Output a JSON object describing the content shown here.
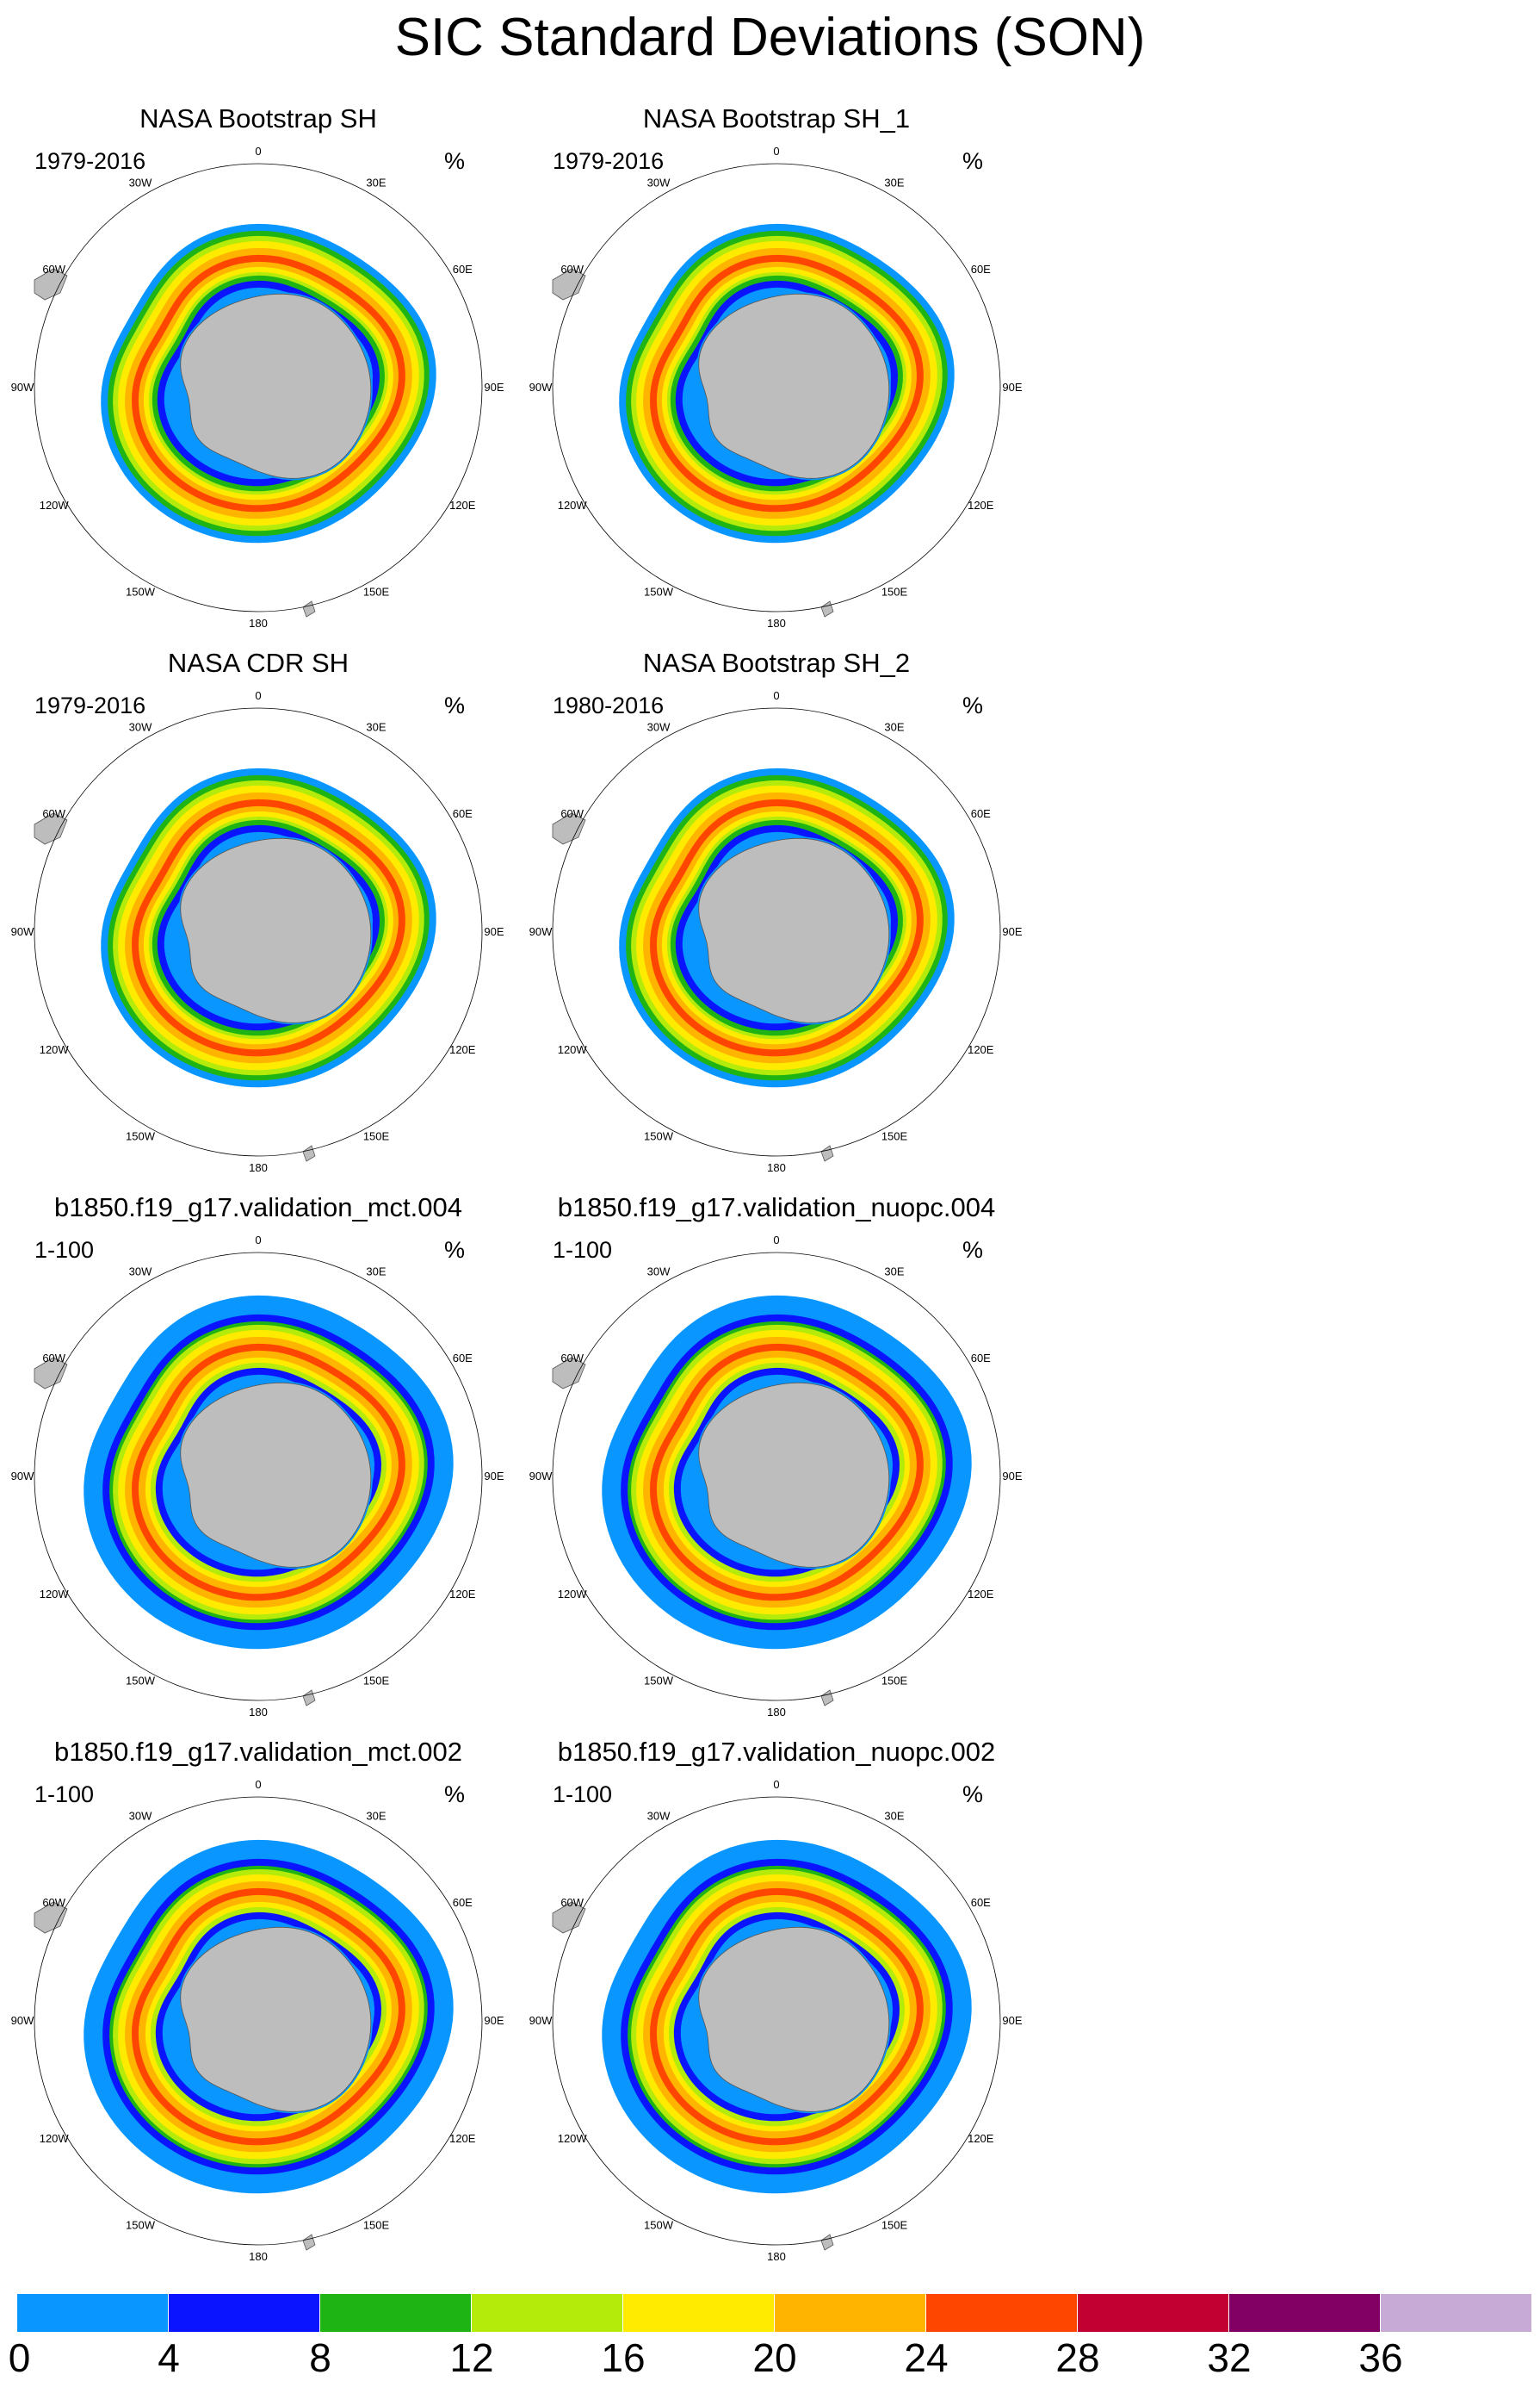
{
  "title": "SIC Standard Deviations (SON)",
  "panels": [
    {
      "title": "NASA Bootstrap SH",
      "period": "1979-2016",
      "units": "%",
      "ring": "obs"
    },
    {
      "title": "NASA Bootstrap SH_1",
      "period": "1979-2016",
      "units": "%",
      "ring": "obs"
    },
    {
      "title": "NASA CDR SH",
      "period": "1979-2016",
      "units": "%",
      "ring": "obs"
    },
    {
      "title": "NASA Bootstrap SH_2",
      "period": "1980-2016",
      "units": "%",
      "ring": "obs"
    },
    {
      "title": "b1850.f19_g17.validation_mct.004",
      "period": "1-100",
      "units": "%",
      "ring": "model"
    },
    {
      "title": "b1850.f19_g17.validation_nuopc.004",
      "period": "1-100",
      "units": "%",
      "ring": "model"
    },
    {
      "title": "b1850.f19_g17.validation_mct.002",
      "period": "1-100",
      "units": "%",
      "ring": "model"
    },
    {
      "title": "b1850.f19_g17.validation_nuopc.002",
      "period": "1-100",
      "units": "%",
      "ring": "model"
    }
  ],
  "longitude_labels": [
    "0",
    "30E",
    "60E",
    "90E",
    "120E",
    "150E",
    "180",
    "150W",
    "120W",
    "90W",
    "60W",
    "30W"
  ],
  "colorbar": {
    "colors": [
      "#0a96ff",
      "#0a14ff",
      "#1eb414",
      "#b4eb0a",
      "#ffeb00",
      "#ffb400",
      "#ff4600",
      "#c30032",
      "#820064",
      "#c8aad6"
    ],
    "labels": [
      "0",
      "4",
      "8",
      "12",
      "16",
      "20",
      "24",
      "28",
      "32",
      "36"
    ]
  },
  "land_color": "#bdbdbd"
}
